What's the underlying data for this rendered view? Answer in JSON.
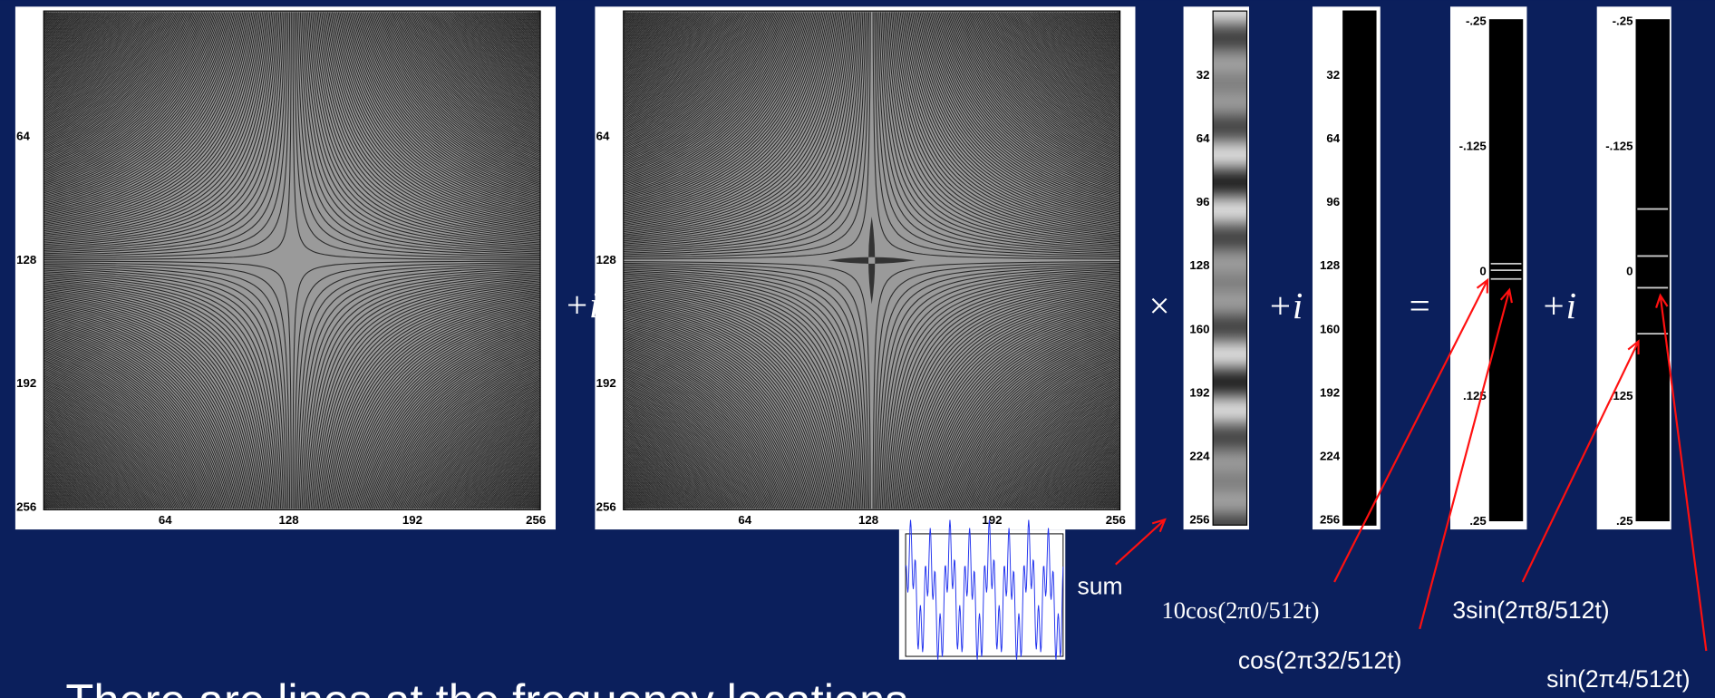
{
  "panels": [
    {
      "y_ticks": [
        "64",
        "128",
        "192",
        "256"
      ],
      "x_ticks": [
        "64",
        "128",
        "192",
        "256"
      ]
    },
    {
      "y_ticks": [
        "64",
        "128",
        "192",
        "256"
      ],
      "x_ticks": [
        "64",
        "128",
        "192",
        "256"
      ]
    }
  ],
  "columns": [
    {
      "ticks": [
        "32",
        "64",
        "96",
        "128",
        "160",
        "192",
        "224",
        "256"
      ]
    },
    {
      "ticks": [
        "32",
        "64",
        "96",
        "128",
        "160",
        "192",
        "224",
        "256"
      ]
    },
    {
      "ticks": [
        "-.25",
        "-.125",
        "0",
        ".125",
        ".25"
      ]
    },
    {
      "ticks": [
        "-.25",
        "-.125",
        "0",
        ".125",
        ".25"
      ]
    }
  ],
  "operators": [
    "+i",
    "×",
    "+i",
    "=",
    "+i"
  ],
  "sum_label": "sum",
  "annotations": [
    "10cos(2π0/512t)",
    "cos(2π32/512t)",
    "3sin(2π8/512t)",
    "sin(2π4/512t)"
  ],
  "caption": "There are lines at the frequency locations"
}
